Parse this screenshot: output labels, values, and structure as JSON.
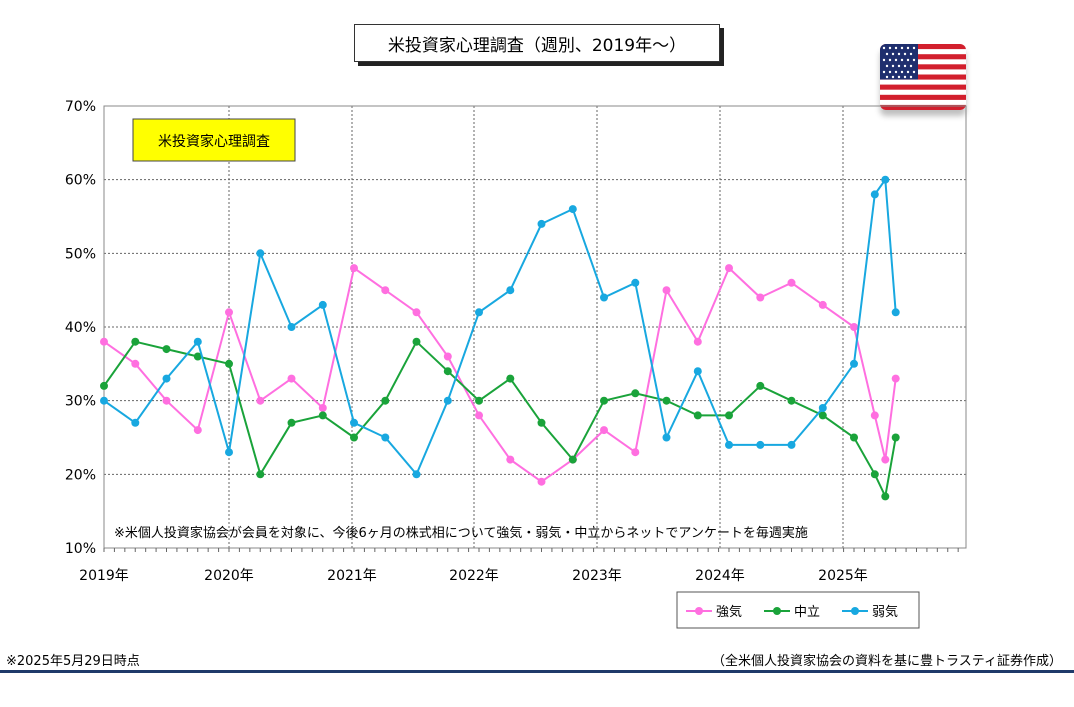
{
  "title": "米投資家心理調査（週別、2019年〜）",
  "footer": {
    "as_of": "※2025年5月29日時点",
    "source": "（全米個人投資家協会の資料を基に豊トラスティ証券作成）"
  },
  "flag_icon": "us-flag-icon",
  "colors": {
    "bullish": "#ff6fe0",
    "neutral": "#1aa33a",
    "bearish": "#18a8e0",
    "label_box": "#ffff00"
  },
  "chart_data": {
    "type": "line",
    "label_box": "米投資家心理調査",
    "note": "※米個人投資家協会が会員を対象に、今後6ヶ月の株式相について強気・弱気・中立からネットでアンケートを毎週実施",
    "x_tick_labels": [
      "2019年",
      "2020年",
      "2021年",
      "2022年",
      "2023年",
      "2024年",
      "2025年"
    ],
    "y_tick_labels": [
      "10%",
      "20%",
      "30%",
      "40%",
      "50%",
      "60%",
      "70%"
    ],
    "ylim": [
      10,
      70
    ],
    "grid": true,
    "legend_position": "bottom-right",
    "x": [
      "2019-01",
      "2019-04",
      "2019-07",
      "2019-10",
      "2020-01",
      "2020-04",
      "2020-07",
      "2020-10",
      "2021-01",
      "2021-04",
      "2021-07",
      "2021-10",
      "2022-01",
      "2022-04",
      "2022-07",
      "2022-10",
      "2023-01",
      "2023-04",
      "2023-07",
      "2023-10",
      "2024-01",
      "2024-04",
      "2024-07",
      "2024-10",
      "2025-01",
      "2025-03",
      "2025-04",
      "2025-05"
    ],
    "series": [
      {
        "name": "強気",
        "values": [
          38,
          35,
          30,
          26,
          42,
          30,
          33,
          29,
          48,
          45,
          42,
          36,
          28,
          22,
          19,
          22,
          26,
          23,
          45,
          38,
          48,
          44,
          46,
          43,
          40,
          28,
          22,
          33
        ]
      },
      {
        "name": "中立",
        "values": [
          32,
          38,
          37,
          36,
          35,
          20,
          27,
          28,
          25,
          30,
          38,
          34,
          30,
          33,
          27,
          22,
          30,
          31,
          30,
          28,
          28,
          32,
          30,
          28,
          25,
          20,
          17,
          25
        ]
      },
      {
        "name": "弱気",
        "values": [
          30,
          27,
          33,
          38,
          23,
          50,
          40,
          43,
          27,
          25,
          20,
          30,
          42,
          45,
          54,
          56,
          44,
          46,
          25,
          34,
          24,
          24,
          24,
          29,
          35,
          58,
          60,
          42
        ]
      }
    ]
  }
}
